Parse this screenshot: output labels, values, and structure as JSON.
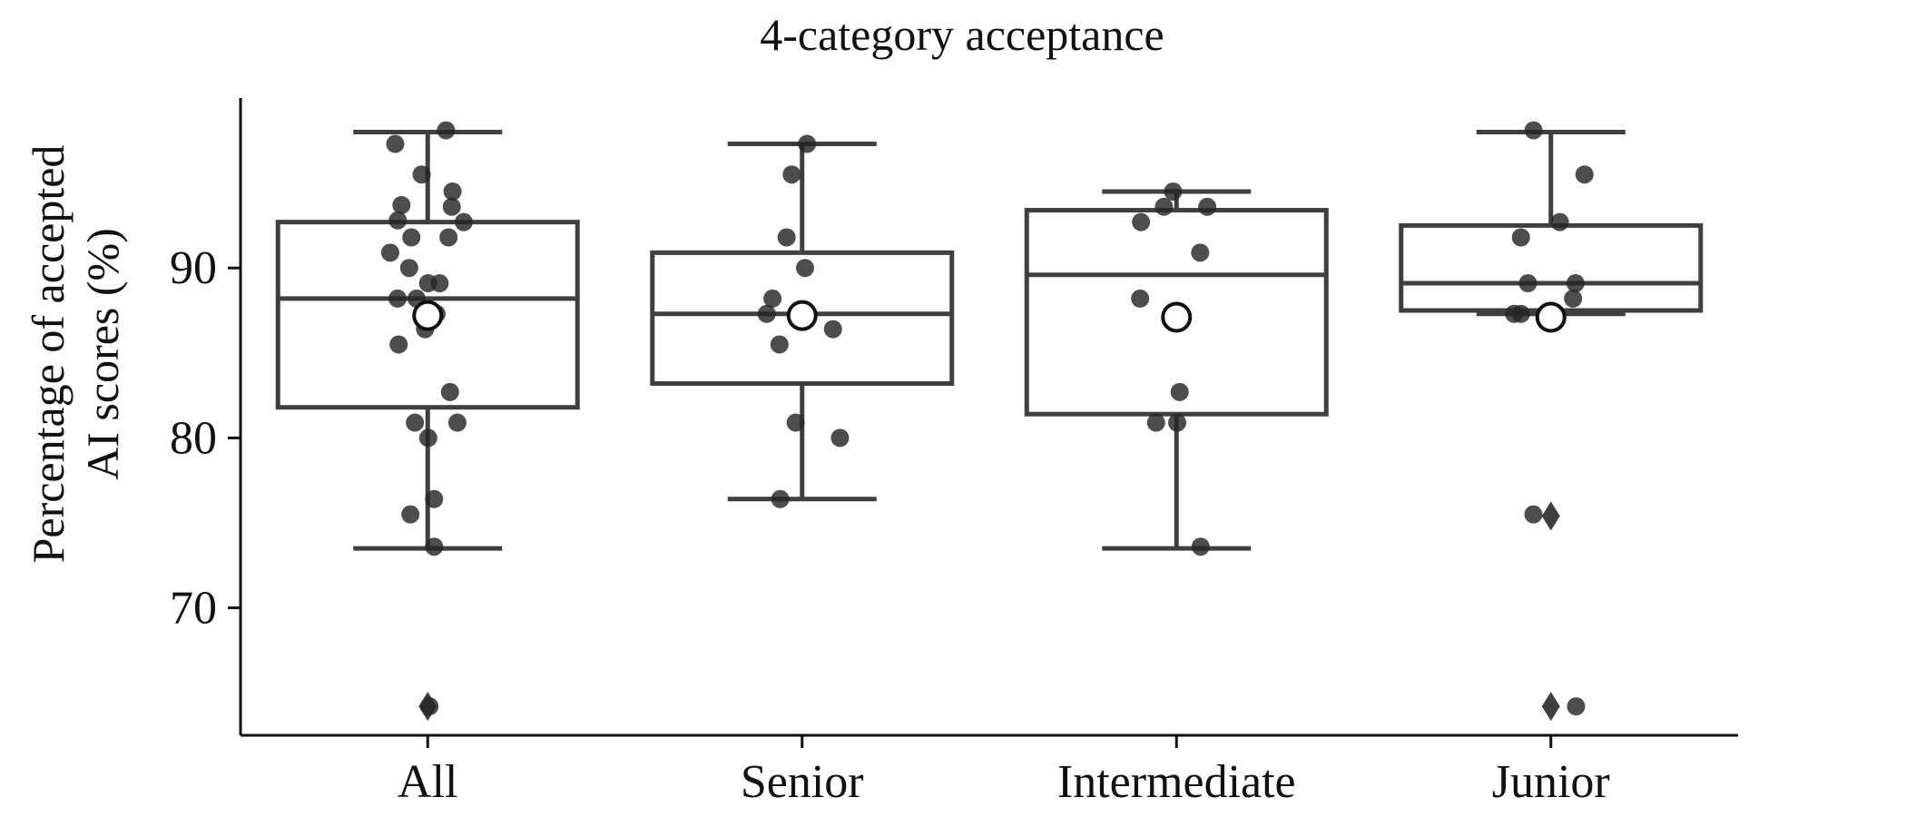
{
  "chart_data": {
    "type": "box",
    "title": "4-category acceptance",
    "xlabel": "",
    "ylabel": "Percentage of accepted AI scores (%)",
    "ylabel_lines": [
      "Percentage of accepted",
      "AI scores (%)"
    ],
    "ylim": [
      62.5,
      100
    ],
    "yticks": [
      70,
      80,
      90
    ],
    "grid": false,
    "categories": [
      "All",
      "Senior",
      "Intermediate",
      "Junior"
    ],
    "boxes": [
      {
        "category": "All",
        "whisker_low": 73.5,
        "q1": 81.8,
        "median": 88.2,
        "q3": 92.7,
        "whisker_high": 98.0,
        "mean": 87.2,
        "outliers": [
          64.2
        ],
        "points": [
          98.1,
          97.3,
          95.5,
          94.5,
          93.7,
          93.6,
          92.8,
          92.7,
          91.8,
          91.8,
          90.9,
          90.0,
          89.1,
          89.1,
          88.2,
          88.2,
          87.3,
          87.3,
          86.4,
          85.5,
          82.7,
          80.9,
          80.9,
          80.0,
          76.4,
          75.5,
          73.6,
          64.2
        ]
      },
      {
        "category": "Senior",
        "whisker_low": 76.4,
        "q1": 83.2,
        "median": 87.3,
        "q3": 90.9,
        "whisker_high": 97.3,
        "mean": 87.2,
        "outliers": [],
        "points": [
          97.3,
          95.5,
          91.8,
          90.0,
          88.2,
          87.3,
          86.4,
          85.5,
          80.9,
          80.0,
          76.4
        ]
      },
      {
        "category": "Intermediate",
        "whisker_low": 73.5,
        "q1": 81.4,
        "median": 89.6,
        "q3": 93.4,
        "whisker_high": 94.5,
        "mean": 87.1,
        "outliers": [],
        "points": [
          94.5,
          93.6,
          93.6,
          92.7,
          90.9,
          88.2,
          82.7,
          80.9,
          80.9,
          73.6
        ]
      },
      {
        "category": "Junior",
        "whisker_low": 87.3,
        "q1": 87.5,
        "median": 89.1,
        "q3": 92.5,
        "whisker_high": 98.0,
        "mean": 87.1,
        "outliers": [
          75.4,
          64.2
        ],
        "points": [
          98.1,
          95.5,
          92.7,
          91.8,
          89.1,
          89.1,
          88.2,
          87.3,
          87.3,
          75.5,
          64.2
        ]
      }
    ],
    "colors": {
      "box": "#3f3f3f",
      "points": "#262626",
      "mean_fill": "#ffffff",
      "mean_edge": "#111111",
      "axis": "#111111"
    }
  }
}
